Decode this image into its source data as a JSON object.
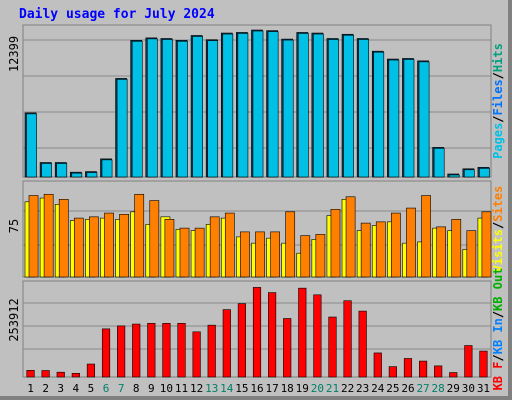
{
  "title": "Daily usage for July 2024",
  "colors": {
    "pages": "#00c0e6",
    "files": "#0072ff",
    "hits": "#00a080",
    "visits": "#ffff00",
    "sites": "#ff8000",
    "kbin": "#0080ff",
    "kbout": "#00b000",
    "kbf": "#ff0000",
    "weekend": "#00806a",
    "weekday": "#000000"
  },
  "chart_data": [
    {
      "type": "bar",
      "name": "hits-pages",
      "ylabel_tick": "12399",
      "ymax": 12399,
      "legend": [
        "Pages",
        "/",
        "Files",
        "/",
        "Hits"
      ],
      "categories": [
        "1",
        "2",
        "3",
        "4",
        "5",
        "6",
        "7",
        "8",
        "9",
        "10",
        "11",
        "12",
        "13",
        "14",
        "15",
        "16",
        "17",
        "18",
        "19",
        "20",
        "21",
        "22",
        "23",
        "24",
        "25",
        "26",
        "27",
        "28",
        "29",
        "30",
        "31"
      ],
      "series": [
        {
          "name": "Hits",
          "values": [
            5300,
            1200,
            1200,
            400,
            450,
            1500,
            8150,
            11300,
            11500,
            11450,
            11300,
            11700,
            11350,
            11900,
            11950,
            12150,
            12100,
            11400,
            11950,
            11900,
            11450,
            11800,
            11450,
            10400,
            9750,
            9800,
            9600,
            2450,
            250,
            680,
            800
          ]
        },
        {
          "name": "Pages",
          "values": [
            5300,
            1200,
            1200,
            400,
            450,
            1500,
            8150,
            11300,
            11500,
            11450,
            11300,
            11700,
            11350,
            11900,
            11950,
            12150,
            12100,
            11400,
            11950,
            11900,
            11450,
            11800,
            11450,
            10400,
            9750,
            9800,
            9600,
            2450,
            250,
            680,
            800
          ]
        }
      ]
    },
    {
      "type": "bar",
      "name": "visits-sites",
      "ylabel_tick": "75",
      "ymax": 75,
      "legend": [
        "Visits",
        "/",
        "Sites"
      ],
      "categories": [
        "1",
        "2",
        "3",
        "4",
        "5",
        "6",
        "7",
        "8",
        "9",
        "10",
        "11",
        "12",
        "13",
        "14",
        "15",
        "16",
        "17",
        "18",
        "19",
        "20",
        "21",
        "22",
        "23",
        "24",
        "25",
        "26",
        "27",
        "28",
        "29",
        "30",
        "31"
      ],
      "series": [
        {
          "name": "Visits",
          "values": [
            60,
            63,
            58,
            45,
            46,
            47,
            46,
            52,
            42,
            48,
            38,
            37,
            42,
            47,
            32,
            27,
            31,
            27,
            19,
            30,
            49,
            62,
            37,
            41,
            44,
            27,
            28,
            39,
            37,
            22,
            47
          ]
        },
        {
          "name": "Sites",
          "values": [
            65,
            66,
            62,
            47,
            48,
            51,
            50,
            66,
            61,
            46,
            39,
            39,
            48,
            51,
            36,
            36,
            36,
            52,
            33,
            34,
            54,
            64,
            43,
            44,
            51,
            55,
            65,
            40,
            46,
            37,
            52
          ]
        }
      ]
    },
    {
      "type": "bar",
      "name": "kbytes",
      "ylabel_tick": "253912",
      "ymax": 253912,
      "legend": [
        "KB F",
        "/",
        "KB In",
        "/",
        "KB Out"
      ],
      "categories": [
        "1",
        "2",
        "3",
        "4",
        "5",
        "6",
        "7",
        "8",
        "9",
        "10",
        "11",
        "12",
        "13",
        "14",
        "15",
        "16",
        "17",
        "18",
        "19",
        "20",
        "21",
        "22",
        "23",
        "24",
        "25",
        "26",
        "27",
        "28",
        "29",
        "30",
        "31"
      ],
      "series": [
        {
          "name": "KB F",
          "values": [
            18000,
            17500,
            13000,
            10000,
            35000,
            130000,
            138000,
            143000,
            145000,
            145000,
            145000,
            122000,
            140000,
            182000,
            198000,
            242000,
            228000,
            158000,
            240000,
            222000,
            162000,
            206000,
            178000,
            65000,
            28000,
            50000,
            43000,
            30000,
            12000,
            85000,
            70000
          ]
        }
      ]
    }
  ]
}
